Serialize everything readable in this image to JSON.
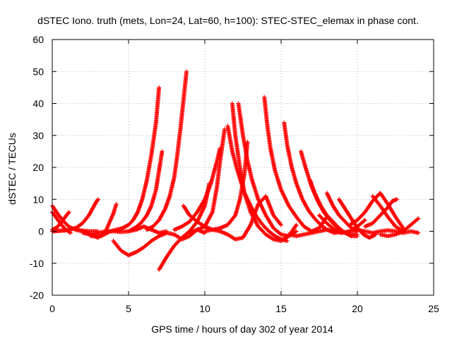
{
  "chart_data": {
    "type": "scatter",
    "title": "dSTEC Iono. truth (mets, Lon=24, Lat=60, h=100): STEC-STEC_elemax in phase cont.",
    "xlabel": "GPS time / hours of day 302 of year 2014",
    "ylabel": "dSTEC  / TECUs",
    "xlim": [
      0,
      25
    ],
    "ylim": [
      -20,
      60
    ],
    "x_ticks": [
      0,
      5,
      10,
      15,
      20,
      25
    ],
    "y_ticks": [
      -20,
      -10,
      0,
      10,
      20,
      30,
      40,
      50,
      60
    ],
    "x_tick_labels": [
      "0",
      "5",
      "10",
      "15",
      "20",
      "25"
    ],
    "y_tick_labels": [
      "-20",
      "-10",
      "0",
      "10",
      "20",
      "30",
      "40",
      "50",
      "60"
    ],
    "grid": true,
    "legend": "none",
    "marker": "plus",
    "series_color": "#ff0000",
    "series": [
      {
        "x": [
          0.0,
          0.3,
          0.6,
          0.9,
          1.2,
          1.6,
          2.0,
          2.4,
          2.8,
          3.0
        ],
        "y": [
          0.0,
          0.1,
          0.2,
          0.3,
          0.5,
          1.2,
          2.6,
          5.0,
          8.5,
          10.0
        ]
      },
      {
        "x": [
          0.0,
          0.4,
          0.8,
          1.1,
          1.5,
          2.0,
          2.5,
          3.0
        ],
        "y": [
          8.0,
          5.2,
          2.8,
          1.4,
          0.6,
          0.2,
          0.0,
          0.0
        ]
      },
      {
        "x": [
          0.0,
          0.3,
          0.6,
          0.9,
          1.1
        ],
        "y": [
          0.5,
          1.2,
          2.8,
          4.8,
          6.0
        ]
      },
      {
        "x": [
          0.0,
          0.3,
          0.6,
          0.9,
          1.2
        ],
        "y": [
          6.0,
          4.0,
          2.0,
          0.5,
          -0.5
        ]
      },
      {
        "x": [
          1.5,
          2.0,
          2.5,
          3.0,
          3.5,
          4.0,
          4.2
        ],
        "y": [
          0.5,
          0.0,
          -1.0,
          -2.0,
          0.0,
          5.5,
          8.5
        ]
      },
      {
        "x": [
          2.0,
          2.5,
          3.0,
          3.5,
          4.0,
          4.5,
          5.0,
          5.5,
          6.0,
          6.5,
          7.0,
          7.5
        ],
        "y": [
          -0.5,
          -1.0,
          -0.5,
          0.0,
          0.0,
          -0.2,
          0.0,
          0.5,
          1.5,
          0.5,
          -0.5,
          0.0
        ]
      },
      {
        "x": [
          4.0,
          4.5,
          5.0,
          5.5,
          6.0,
          6.5,
          7.0,
          7.5,
          8.0,
          8.5,
          9.0,
          9.5,
          10.0
        ],
        "y": [
          -3.0,
          -6.0,
          -7.5,
          -6.5,
          -5.0,
          -3.0,
          -1.5,
          -0.5,
          -1.0,
          -2.5,
          -1.5,
          0.5,
          -0.5
        ]
      },
      {
        "x": [
          2.5,
          3.2,
          3.8,
          4.2,
          4.6,
          5.0,
          5.3,
          5.6,
          5.9,
          6.2,
          6.5,
          6.8,
          7.0
        ],
        "y": [
          -1.5,
          -1.5,
          0.0,
          0.5,
          1.0,
          2.0,
          3.5,
          6.0,
          10.0,
          16.0,
          24.0,
          34.0,
          45.0
        ]
      },
      {
        "x": [
          5.0,
          5.4,
          5.8,
          6.2,
          6.5,
          6.8,
          7.0,
          7.2
        ],
        "y": [
          0.0,
          1.0,
          2.5,
          5.0,
          8.0,
          13.0,
          19.0,
          25.0
        ]
      },
      {
        "x": [
          6.2,
          6.6,
          7.0,
          7.4,
          7.7,
          8.0,
          8.2,
          8.4,
          8.6,
          8.8
        ],
        "y": [
          0.5,
          1.5,
          3.5,
          7.0,
          11.0,
          17.0,
          24.0,
          32.0,
          41.0,
          50.0
        ]
      },
      {
        "x": [
          7.0,
          7.5,
          8.0,
          8.5,
          9.0,
          9.5,
          10.0,
          10.3
        ],
        "y": [
          -12.0,
          -8.0,
          -4.5,
          -2.0,
          0.0,
          3.0,
          8.0,
          15.0
        ]
      },
      {
        "x": [
          8.0,
          8.5,
          9.0,
          9.5,
          10.0,
          10.4,
          10.8,
          11.0
        ],
        "y": [
          0.5,
          1.5,
          3.0,
          6.0,
          10.0,
          15.0,
          22.0,
          26.0
        ]
      },
      {
        "x": [
          9.0,
          9.5,
          10.0,
          10.5,
          10.8,
          11.0,
          11.3
        ],
        "y": [
          -0.5,
          0.5,
          1.5,
          6.0,
          14.0,
          22.0,
          32.0
        ]
      },
      {
        "x": [
          8.6,
          9.0,
          9.5,
          10.0,
          10.5,
          11.0,
          11.5,
          12.0,
          12.5,
          13.0,
          13.5,
          14.0,
          14.5,
          15.0
        ],
        "y": [
          8.0,
          5.0,
          3.0,
          1.5,
          0.5,
          0.0,
          -1.0,
          -2.5,
          -2.0,
          2.0,
          8.5,
          11.0,
          5.0,
          2.0
        ]
      },
      {
        "x": [
          11.8,
          12.0,
          12.3,
          12.6,
          13.0,
          13.5,
          14.0,
          14.5,
          15.0,
          15.5,
          16.0
        ],
        "y": [
          40.0,
          30.0,
          20.0,
          12.0,
          6.0,
          1.5,
          -1.0,
          -2.5,
          -3.0,
          -1.5,
          2.0
        ]
      },
      {
        "x": [
          11.5,
          11.8,
          12.2,
          12.6,
          13.0,
          13.4,
          13.8,
          14.2,
          14.6,
          15.0,
          15.4
        ],
        "y": [
          33.0,
          25.0,
          18.0,
          12.0,
          8.0,
          4.5,
          2.0,
          0.0,
          -1.5,
          -2.5,
          -3.0
        ]
      },
      {
        "x": [
          12.2,
          12.5,
          12.8,
          13.1,
          13.5,
          14.0,
          14.5,
          15.0,
          15.5,
          16.0
        ],
        "y": [
          40.0,
          30.0,
          22.0,
          16.0,
          10.0,
          5.0,
          1.0,
          -1.0,
          -1.5,
          0.0
        ]
      },
      {
        "x": [
          10.0,
          10.5,
          11.0,
          11.5,
          12.0,
          12.3,
          12.6,
          12.8
        ],
        "y": [
          0.0,
          0.5,
          1.0,
          2.0,
          5.0,
          10.0,
          18.0,
          28.0
        ]
      },
      {
        "x": [
          13.9,
          14.1,
          14.3,
          14.6,
          15.0,
          15.5,
          16.0,
          16.5,
          17.0,
          17.5,
          18.0
        ],
        "y": [
          42.0,
          33.0,
          26.0,
          19.0,
          13.0,
          8.0,
          4.5,
          1.5,
          0.0,
          1.0,
          4.5
        ]
      },
      {
        "x": [
          15.2,
          15.4,
          15.7,
          16.0,
          16.4,
          16.8,
          17.2,
          17.6,
          18.0,
          18.5,
          19.0
        ],
        "y": [
          34.0,
          27.0,
          20.0,
          15.0,
          10.0,
          6.5,
          4.0,
          2.0,
          0.5,
          -0.5,
          0.0
        ]
      },
      {
        "x": [
          16.3,
          16.6,
          17.0,
          17.4,
          17.8,
          18.2,
          18.6,
          19.0,
          19.5,
          20.0
        ],
        "y": [
          25.0,
          20.0,
          14.0,
          9.5,
          6.0,
          3.5,
          1.5,
          0.0,
          -1.0,
          -1.0
        ]
      },
      {
        "x": [
          16.9,
          17.2,
          17.6,
          18.0,
          18.4,
          18.8,
          19.2,
          19.6,
          20.0
        ],
        "y": [
          16.0,
          12.0,
          8.0,
          5.0,
          3.0,
          1.0,
          -0.5,
          -1.5,
          -1.5
        ]
      },
      {
        "x": [
          15.5,
          16.0,
          16.5,
          17.0,
          17.5,
          18.0,
          18.5,
          19.0,
          19.5,
          20.0,
          20.5,
          21.0,
          21.5,
          22.0,
          22.5,
          23.0,
          23.5,
          24.0
        ],
        "y": [
          -1.0,
          -1.5,
          -1.0,
          -0.5,
          0.0,
          0.5,
          0.0,
          -0.5,
          0.0,
          0.5,
          0.0,
          -0.5,
          0.0,
          0.3,
          0.0,
          -0.5,
          0.0,
          -0.5
        ]
      },
      {
        "x": [
          18.0,
          18.4,
          18.8,
          19.2,
          19.5,
          19.8,
          20.0
        ],
        "y": [
          12.0,
          8.0,
          5.0,
          3.0,
          1.5,
          0.5,
          0.0
        ]
      },
      {
        "x": [
          18.8,
          19.2,
          19.6,
          20.0,
          20.4,
          20.8,
          21.2
        ],
        "y": [
          10.0,
          7.0,
          4.0,
          1.0,
          -1.0,
          -2.0,
          -1.0
        ]
      },
      {
        "x": [
          19.5,
          20.0,
          20.5,
          21.0,
          21.5,
          22.0,
          22.5,
          23.0
        ],
        "y": [
          2.0,
          3.5,
          6.0,
          9.5,
          12.0,
          8.5,
          4.5,
          1.0
        ]
      },
      {
        "x": [
          20.5,
          21.0,
          21.5,
          22.0,
          22.3,
          22.6
        ],
        "y": [
          1.5,
          2.5,
          5.0,
          7.5,
          9.5,
          10.0
        ]
      },
      {
        "x": [
          21.0,
          21.5,
          22.0,
          22.5,
          23.0
        ],
        "y": [
          11.0,
          8.0,
          4.5,
          1.5,
          0.0
        ]
      },
      {
        "x": [
          21.5,
          22.0,
          22.5,
          23.0,
          23.5,
          24.0
        ],
        "y": [
          -1.0,
          -1.5,
          -1.0,
          0.0,
          2.0,
          4.0
        ]
      },
      {
        "x": [
          17.5,
          18.0,
          18.5,
          19.0,
          19.5,
          20.0,
          20.5
        ],
        "y": [
          5.0,
          2.5,
          0.5,
          -0.5,
          0.0,
          1.5,
          3.5
        ]
      }
    ]
  }
}
